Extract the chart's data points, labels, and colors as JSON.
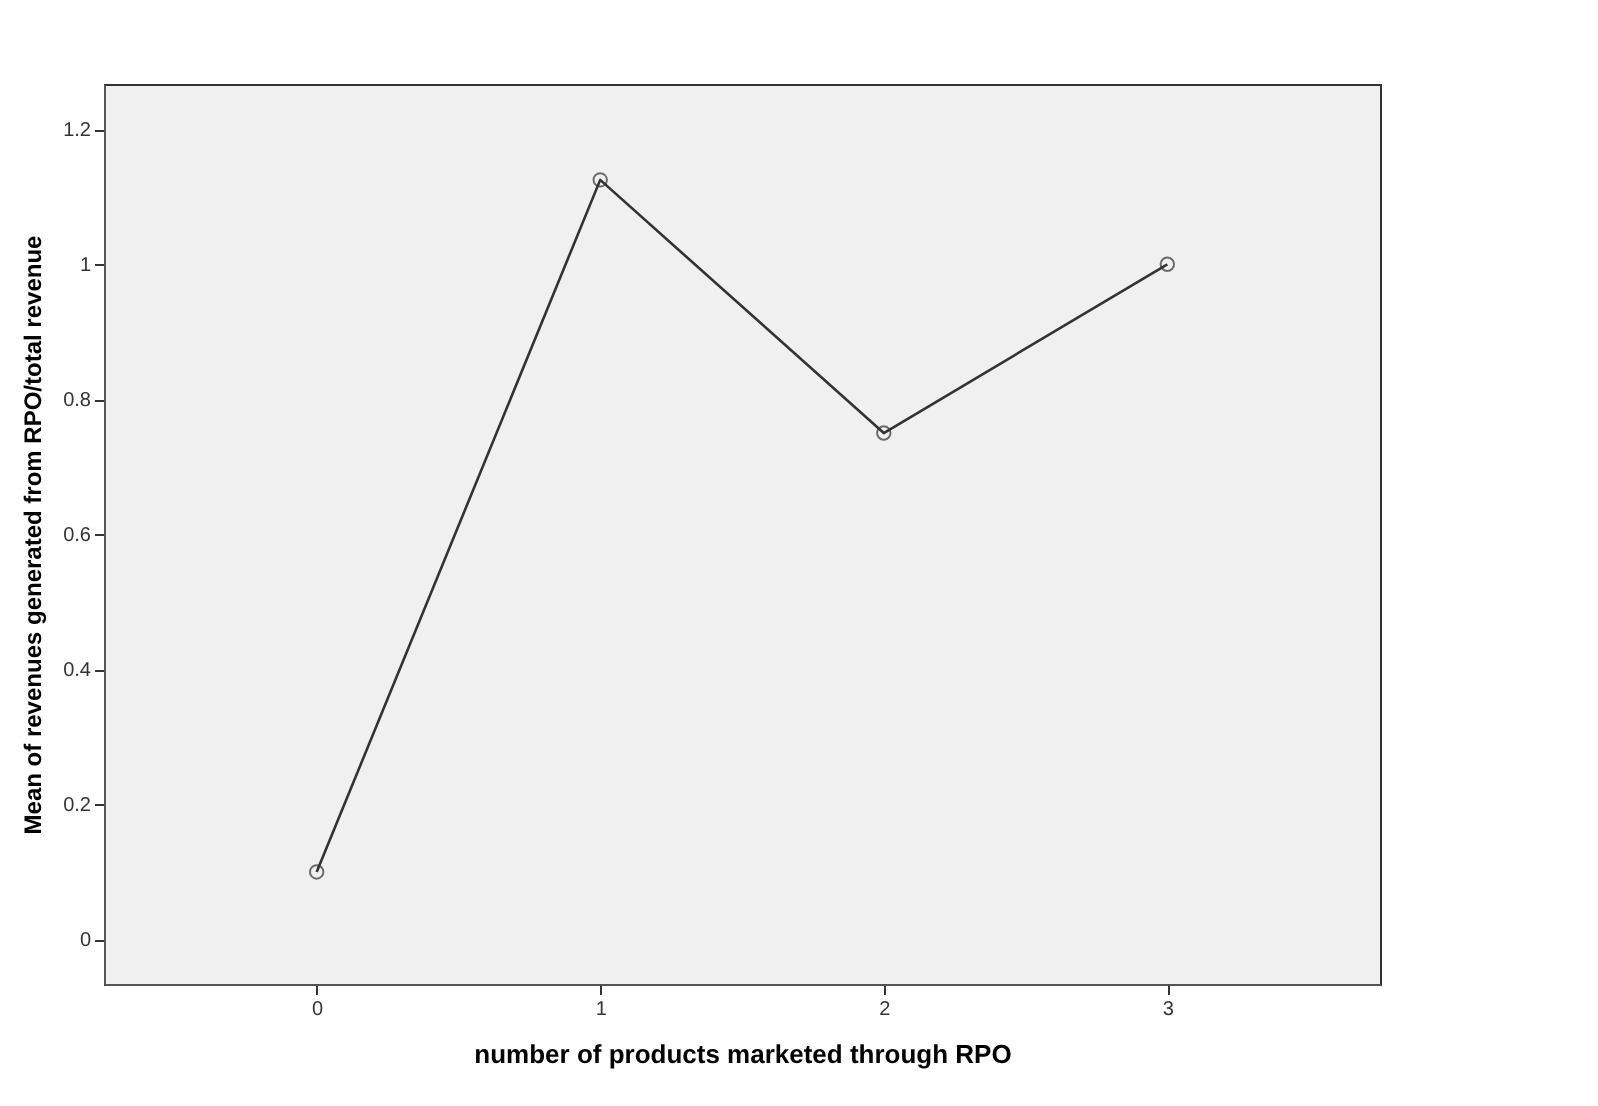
{
  "chart_data": {
    "type": "line",
    "xlabel": "number of products marketed through RPO",
    "ylabel": "Mean of revenues generated from RPO/total revenue",
    "categories": [
      "0",
      "1",
      "2",
      "3"
    ],
    "series": [
      {
        "color": "#333333",
        "values": [
          0.1,
          1.125,
          0.75,
          1.0
        ]
      }
    ],
    "ylim": [
      -0.066,
      1.267
    ],
    "yticks": [
      0,
      0.2,
      0.4,
      0.6,
      0.8,
      1,
      1.2
    ],
    "grid": false,
    "marker": "circle",
    "line_style": "solid"
  }
}
